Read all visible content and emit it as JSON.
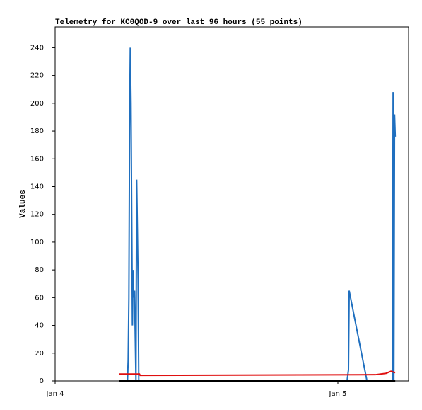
{
  "chart_data": {
    "type": "line",
    "title": "Telemetry for KC0QOD-9 over last 96 hours (55 points)",
    "y_label": "Values",
    "xlim": [
      0,
      30
    ],
    "ylim": [
      0,
      255
    ],
    "xticks": [
      {
        "value": 0,
        "label": "Jan 4"
      },
      {
        "value": 24,
        "label": "Jan 5"
      }
    ],
    "yticks": [
      0,
      20,
      40,
      60,
      80,
      100,
      120,
      140,
      160,
      180,
      200,
      220,
      240
    ],
    "grid": false,
    "series": [
      {
        "color": "#1f6fbf",
        "x": [
          6.14,
          6.2,
          6.26,
          6.32,
          6.38,
          6.44,
          6.5,
          6.56,
          6.62,
          6.68,
          6.74,
          6.86,
          6.92,
          6.98,
          7.04,
          7.1,
          24.78,
          24.9,
          24.96,
          26.47,
          28.64,
          28.69,
          28.75,
          28.81,
          28.87
        ],
        "values": [
          0,
          15,
          60,
          180,
          240,
          200,
          120,
          40,
          80,
          60,
          65,
          0,
          145,
          110,
          73,
          0,
          0,
          8,
          65,
          0,
          0,
          208,
          0,
          192,
          176
        ]
      },
      {
        "color": "#e01010",
        "x": [
          5.41,
          7.16,
          7.22,
          27.19,
          28.09,
          28.51,
          28.87
        ],
        "values": [
          5,
          5,
          4,
          4.5,
          5.5,
          7,
          6
        ]
      },
      {
        "color": "#000000",
        "x": [
          5.41,
          28.87
        ],
        "values": [
          0,
          0
        ]
      }
    ]
  }
}
